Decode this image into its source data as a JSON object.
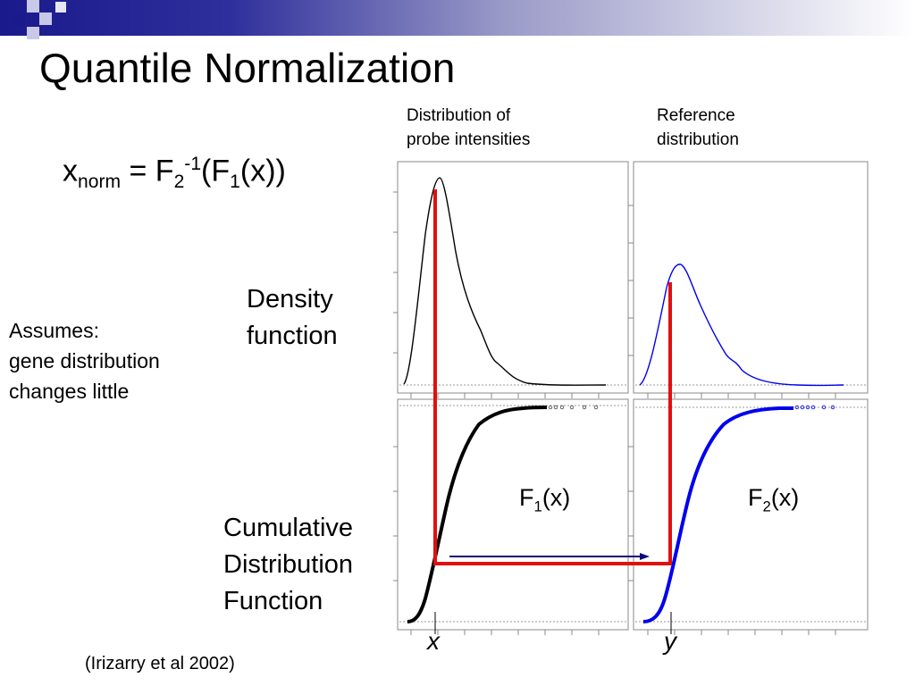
{
  "title": "Quantile Normalization",
  "formula": {
    "x": "x",
    "norm_sub": "norm",
    "equals": "= F",
    "f2_sub": "2",
    "inv_sup": "-1",
    "paren_f": "(F",
    "f1_sub": "1",
    "tail": "(x))"
  },
  "headers": {
    "left_line1": "Distribution of",
    "left_line2": "probe intensities",
    "right_line1": "Reference",
    "right_line2": "distribution"
  },
  "row_labels": {
    "density_line1": "Density",
    "density_line2": "function",
    "cdf_line1": "Cumulative",
    "cdf_line2": "Distribution",
    "cdf_line3": "Function"
  },
  "assumes": {
    "line1": "Assumes:",
    "line2": "gene distribution",
    "line3": "changes little"
  },
  "cdf_labels": {
    "f1_letter": "F",
    "f1_sub": "1",
    "f1_arg": "(x)",
    "f2_letter": "F",
    "f2_sub": "2",
    "f2_arg": "(x)"
  },
  "axis_marks": {
    "x": "x",
    "y": "y"
  },
  "citation": "(Irizarry et al 2002)",
  "colors": {
    "probe_curve": "#000000",
    "reference_curve": "#0000ee",
    "mapping_line": "#e01010",
    "arrow": "#0a0a7a",
    "panel_border": "#888888"
  }
}
